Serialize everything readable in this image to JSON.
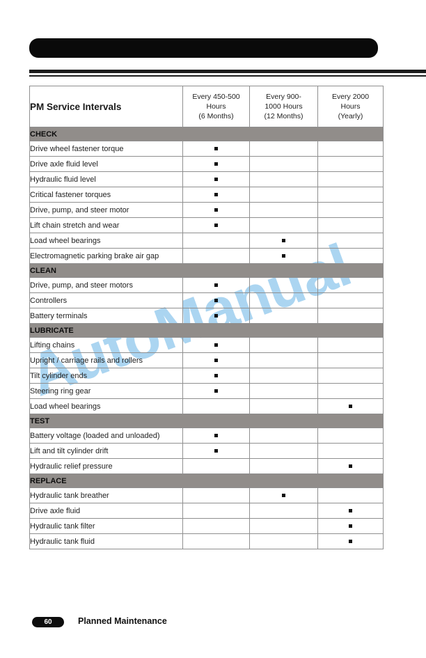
{
  "watermark": "AutoManual",
  "table": {
    "title": "PM Service Intervals",
    "interval_columns": [
      "Every 450-500\nHours\n(6 Months)",
      "Every 900-\n1000 Hours\n(12 Months)",
      "Every 2000\nHours\n(Yearly)"
    ],
    "sections": [
      {
        "label": "CHECK",
        "rows": [
          {
            "task": "Drive wheel fastener torque",
            "marks": [
              true,
              false,
              false
            ]
          },
          {
            "task": "Drive axle fluid level",
            "marks": [
              true,
              false,
              false
            ]
          },
          {
            "task": "Hydraulic fluid level",
            "marks": [
              true,
              false,
              false
            ]
          },
          {
            "task": "Critical fastener torques",
            "marks": [
              true,
              false,
              false
            ]
          },
          {
            "task": "Drive, pump, and steer motor",
            "marks": [
              true,
              false,
              false
            ]
          },
          {
            "task": "Lift chain stretch and wear",
            "marks": [
              true,
              false,
              false
            ]
          },
          {
            "task": "Load wheel bearings",
            "marks": [
              false,
              true,
              false
            ]
          },
          {
            "task": "Electromagnetic parking brake air gap",
            "marks": [
              false,
              true,
              false
            ]
          }
        ]
      },
      {
        "label": "CLEAN",
        "rows": [
          {
            "task": "Drive, pump, and steer motors",
            "marks": [
              true,
              false,
              false
            ]
          },
          {
            "task": "Controllers",
            "marks": [
              true,
              false,
              false
            ]
          },
          {
            "task": "Battery terminals",
            "marks": [
              true,
              false,
              false
            ]
          }
        ]
      },
      {
        "label": "LUBRICATE",
        "rows": [
          {
            "task": "Lifting chains",
            "marks": [
              true,
              false,
              false
            ]
          },
          {
            "task": "Upright / carriage rails and rollers",
            "marks": [
              true,
              false,
              false
            ]
          },
          {
            "task": "Tilt cylinder ends",
            "marks": [
              true,
              false,
              false
            ]
          },
          {
            "task": "Steering ring gear",
            "marks": [
              true,
              false,
              false
            ]
          },
          {
            "task": "Load wheel bearings",
            "marks": [
              false,
              false,
              true
            ]
          }
        ]
      },
      {
        "label": "TEST",
        "rows": [
          {
            "task": "Battery voltage (loaded and unloaded)",
            "marks": [
              true,
              false,
              false
            ]
          },
          {
            "task": "Lift and tilt cylinder drift",
            "marks": [
              true,
              false,
              false
            ]
          },
          {
            "task": "Hydraulic relief pressure",
            "marks": [
              false,
              false,
              true
            ]
          }
        ]
      },
      {
        "label": "REPLACE",
        "rows": [
          {
            "task": "Hydraulic tank breather",
            "marks": [
              false,
              true,
              false
            ]
          },
          {
            "task": "Drive axle fluid",
            "marks": [
              false,
              false,
              true
            ]
          },
          {
            "task": "Hydraulic tank filter",
            "marks": [
              false,
              false,
              true
            ]
          },
          {
            "task": "Hydraulic tank fluid",
            "marks": [
              false,
              false,
              true
            ]
          }
        ]
      }
    ]
  },
  "footer": {
    "page_number": "60",
    "title": "Planned Maintenance"
  },
  "colors": {
    "section_band": "#918d8a",
    "watermark_blue": "#97cbee",
    "mark": "#111111"
  }
}
